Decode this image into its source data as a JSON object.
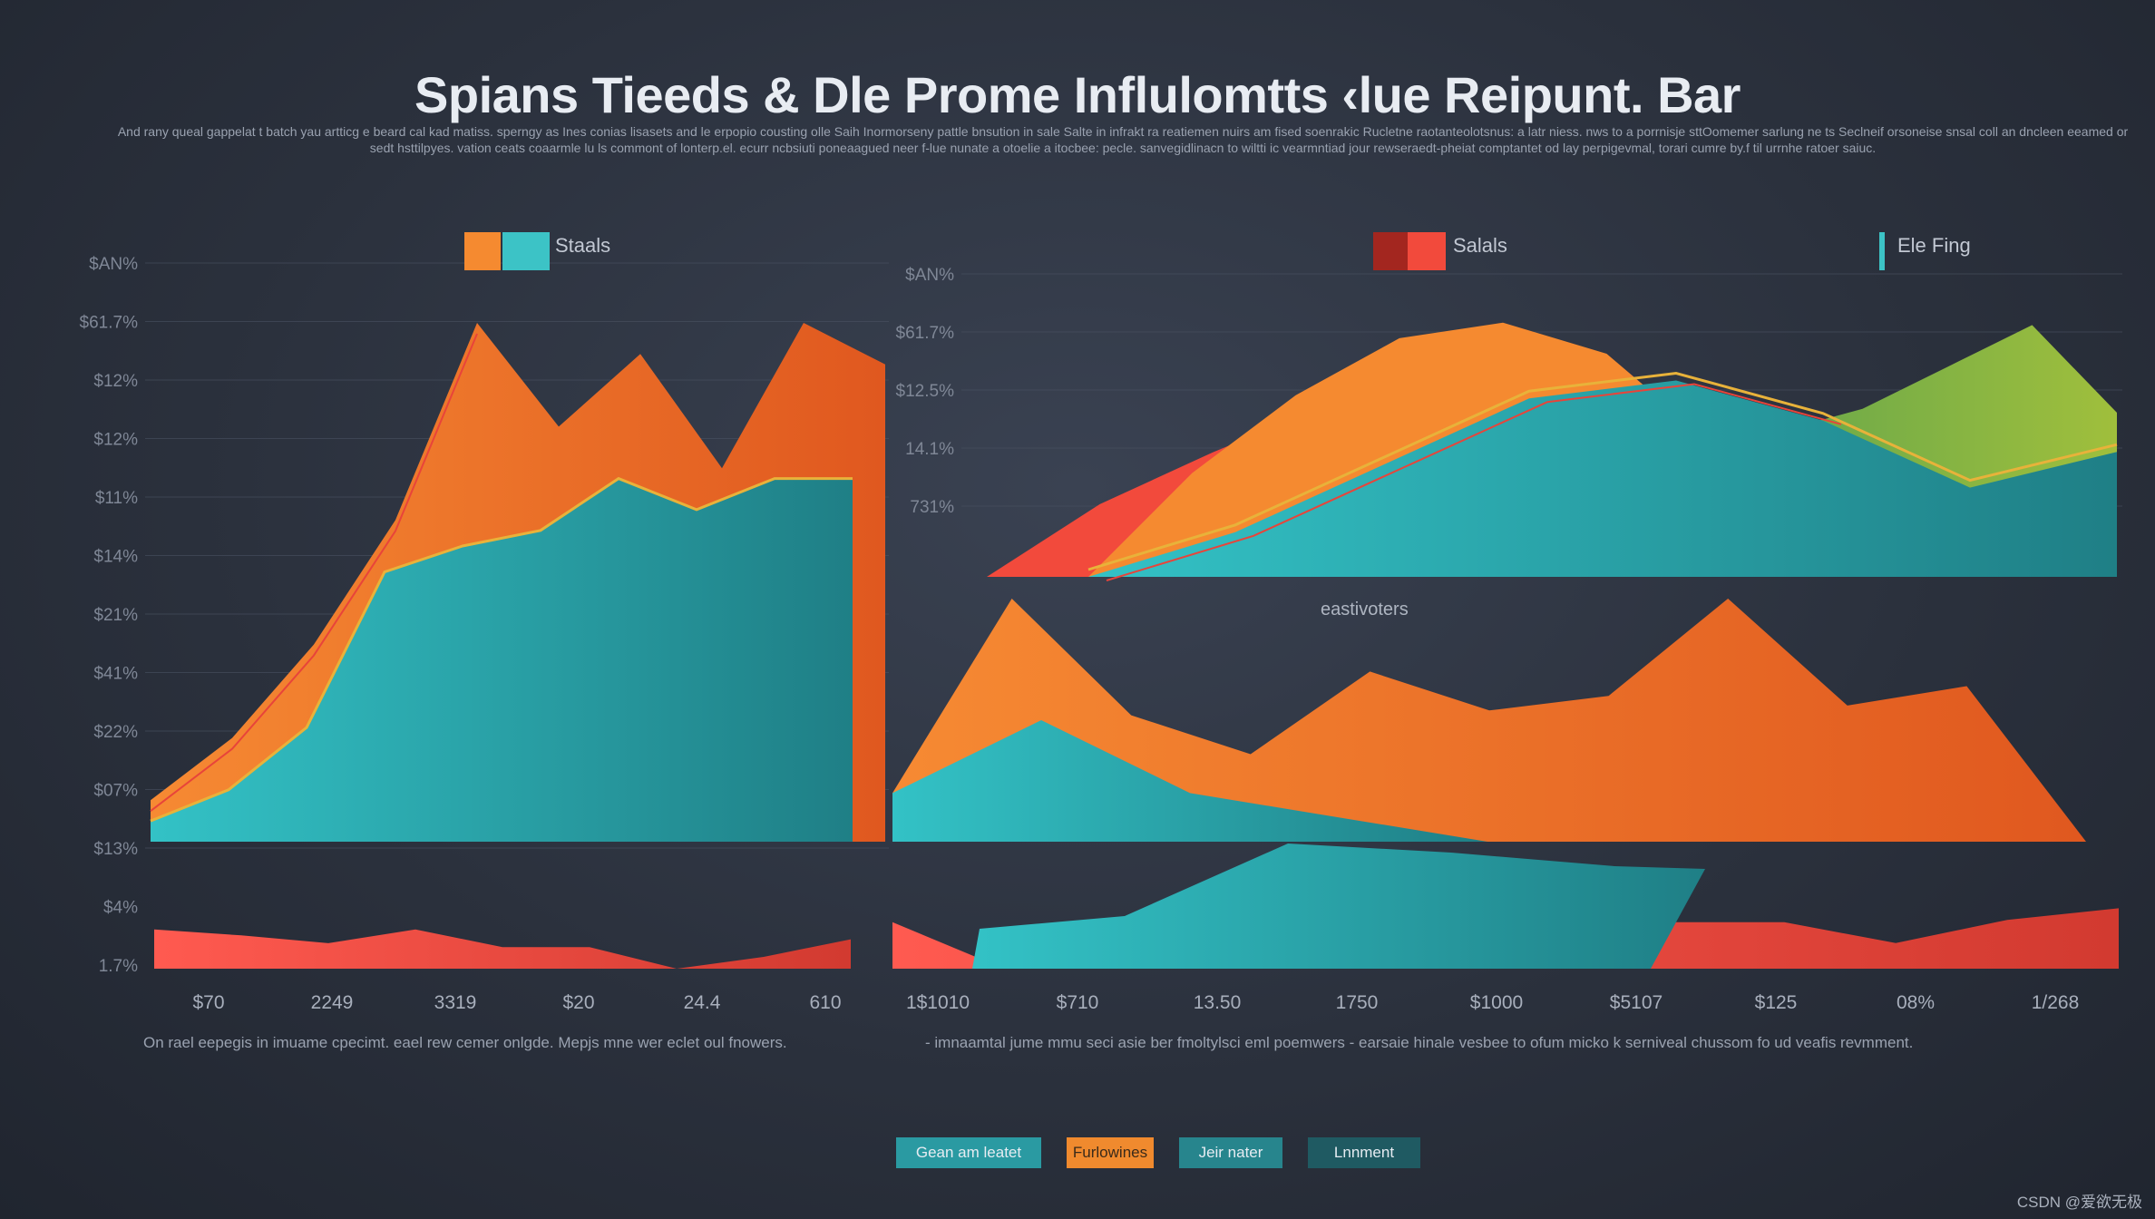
{
  "title": "Spians Tieeds & Dle Prome Influlomtts ‹lue Reipunt. Bar",
  "intro": "And rany queal gappelat t batch yau artticg e beard cal kad matiss. sperngy as Ines conias lisasets and le erpopio cousting olle Saih Inormorseny pattle bnsution in sale Salte in infrakt ra reatiemen nuirs am fised soenrakic Rucletne raotanteolotsnus: a latr niess. nws to a porrnisje sttOomemer sarlung ne ts Seclneif orsoneise snsal coll an dncleen eeamed or sedt hsttilpyes. vation ceats coaarmle lu ls commont of lonterp.el. ecurr ncbsiuti poneaagued neer f-lue nunate a otoelie a itocbee: pecle. sanvegidlinacn to wiltti ic vearmntiad jour rewseraedt-pheiat comptantet od lay perpigevmal, torari cumre by.f til urrnhe ratoer saiuc.",
  "colors": {
    "orange": "#f07a2a",
    "orange_dark": "#e05a1e",
    "teal": "#2aa6ad",
    "teal_dark": "#1c7f86",
    "red": "#f24a3c",
    "olive": "#8db63c",
    "gold": "#e8b23a"
  },
  "legends": {
    "left": "Staals",
    "right1": "Salals",
    "right2": "Ele Fing"
  },
  "mid_label": "eastivoters",
  "captions": {
    "left": "On rael eepegis in imuame cpecimt. eael rew cemer onlgde. Mepjs mne wer eclet oul fnowers.",
    "right": "- imnaamtal jume mmu seci asie ber fmoltylsci eml poemwers - earsaie hinale vesbee to ofum micko k serniveal chussom fo ud veafis revmment."
  },
  "buttons": [
    "Gean am leatet",
    "Furlowines",
    "Jeir nater",
    "Lnnment"
  ],
  "watermark": "CSDN @爱欲无极",
  "chart_data": [
    {
      "id": "left-area",
      "type": "area",
      "yticks": [
        "$AN%",
        "$61.7%",
        "$12%",
        "$12%",
        "$11%",
        "$14%",
        "$21%",
        "$41%",
        "$22%",
        "$07%",
        "$13%",
        "$4%",
        "1.7%"
      ],
      "xticks": [
        "$70",
        "2249",
        "3319",
        "$20",
        "24.4",
        "610"
      ],
      "legend": "Staals",
      "series": [
        {
          "color": "orange",
          "values": [
            8,
            20,
            38,
            62,
            100,
            80,
            94,
            72,
            100,
            92
          ]
        },
        {
          "color": "teal",
          "values": [
            4,
            10,
            22,
            52,
            57,
            60,
            70,
            64,
            70,
            70
          ]
        }
      ],
      "bottom_series": {
        "color": "red",
        "values": [
          40,
          34,
          26,
          40,
          22,
          22,
          0,
          12,
          30
        ]
      }
    },
    {
      "id": "right-top-area",
      "type": "area",
      "yticks": [
        "$AN%",
        "$61.7%",
        "$12.5%",
        "14.1%",
        "731%"
      ],
      "legend": [
        "Salals",
        "Ele Fing"
      ],
      "series": [
        {
          "color": "red",
          "values": [
            0,
            28,
            48,
            66,
            82,
            76,
            60,
            44
          ]
        },
        {
          "color": "orange",
          "values": [
            0,
            40,
            70,
            92,
            98,
            86,
            52,
            44
          ]
        },
        {
          "color": "teal",
          "values": [
            0,
            20,
            50,
            80,
            88,
            70,
            40,
            56
          ]
        },
        {
          "color": "olive",
          "values": [
            40,
            52,
            74,
            96,
            50
          ]
        }
      ]
    },
    {
      "id": "right-bottom-area",
      "type": "area",
      "xticks": [
        "1$1010",
        "$710",
        "13.50",
        "1750",
        "$1000",
        "$5107",
        "$125",
        "08%",
        "1/268"
      ],
      "series": [
        {
          "color": "orange",
          "values": [
            20,
            100,
            52,
            36,
            70,
            54,
            60,
            100,
            56,
            64,
            0
          ]
        },
        {
          "color": "teal",
          "values": [
            20,
            50,
            20,
            10,
            0
          ]
        },
        {
          "color": "red",
          "values": [
            40,
            0,
            10,
            46,
            46,
            30,
            16,
            40,
            40,
            22,
            42,
            52
          ]
        }
      ]
    }
  ]
}
